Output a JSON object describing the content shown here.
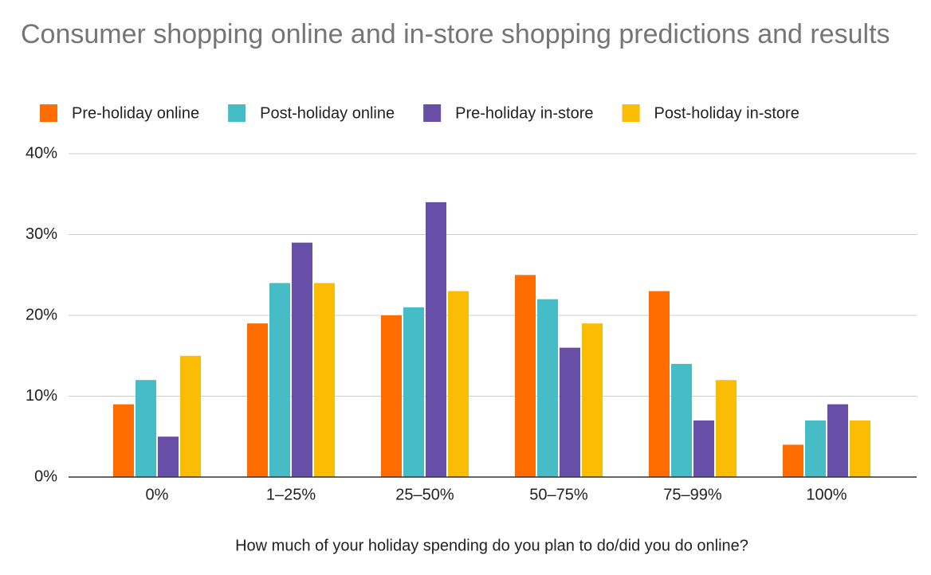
{
  "chart_data": {
    "type": "bar",
    "title": "Consumer shopping online and in-store shopping predictions and results",
    "x_label": "How much of your holiday spending do you plan to do/did you do online?",
    "categories": [
      "0%",
      "1–25%",
      "25–50%",
      "50–75%",
      "75–99%",
      "100%"
    ],
    "series": [
      {
        "name": "Pre-holiday online",
        "color": "#ff6d01",
        "values": [
          9,
          19,
          20,
          25,
          23,
          4
        ]
      },
      {
        "name": "Post-holiday online",
        "color": "#46bdc6",
        "values": [
          12,
          24,
          21,
          22,
          14,
          7
        ]
      },
      {
        "name": "Pre-holiday in-store",
        "color": "#674ea7",
        "values": [
          5,
          29,
          34,
          16,
          7,
          9
        ]
      },
      {
        "name": "Post-holiday in-store",
        "color": "#fbbc04",
        "values": [
          15,
          24,
          23,
          19,
          12,
          7
        ]
      }
    ],
    "ylim": [
      0,
      40
    ],
    "yticks": [
      {
        "value": 0,
        "label": "0%"
      },
      {
        "value": 10,
        "label": "10%"
      },
      {
        "value": 20,
        "label": "20%"
      },
      {
        "value": 30,
        "label": "30%"
      },
      {
        "value": 40,
        "label": "40%"
      }
    ],
    "grid": true,
    "legend": "top"
  }
}
